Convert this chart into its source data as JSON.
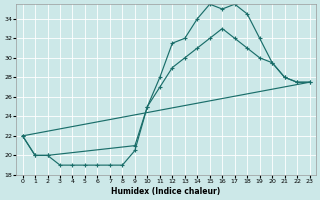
{
  "xlabel": "Humidex (Indice chaleur)",
  "bg_color": "#cce8e8",
  "grid_color": "#ffffff",
  "line_color": "#1a6e6a",
  "xlim": [
    -0.5,
    23.5
  ],
  "ylim": [
    18,
    35.5
  ],
  "yticks": [
    18,
    20,
    22,
    24,
    26,
    28,
    30,
    32,
    34
  ],
  "xticks": [
    0,
    1,
    2,
    3,
    4,
    5,
    6,
    7,
    8,
    9,
    10,
    11,
    12,
    13,
    14,
    15,
    16,
    17,
    18,
    19,
    20,
    21,
    22,
    23
  ],
  "curve1_x": [
    0,
    1,
    2,
    3,
    4,
    5,
    6,
    7,
    8,
    9,
    10,
    11,
    12,
    13,
    14,
    15,
    16,
    17,
    18,
    19,
    20,
    21,
    22,
    23
  ],
  "curve1_y": [
    22,
    20,
    20,
    19,
    19,
    19,
    19,
    19,
    19,
    20.5,
    25,
    28,
    31.5,
    32,
    34.0,
    35.5,
    35.0,
    35.5,
    34.5,
    32.0,
    29.5,
    28.0,
    27.5,
    27.5
  ],
  "curve2_x": [
    0,
    1,
    2,
    9,
    10,
    11,
    12,
    13,
    14,
    15,
    16,
    17,
    18,
    19,
    20,
    21,
    22,
    23
  ],
  "curve2_y": [
    22,
    20,
    20,
    21,
    25,
    27,
    29,
    30,
    31,
    32,
    33,
    32,
    31,
    30,
    29.5,
    28,
    27.5,
    27.5
  ],
  "curve3_x": [
    0,
    23
  ],
  "curve3_y": [
    22,
    27.5
  ]
}
